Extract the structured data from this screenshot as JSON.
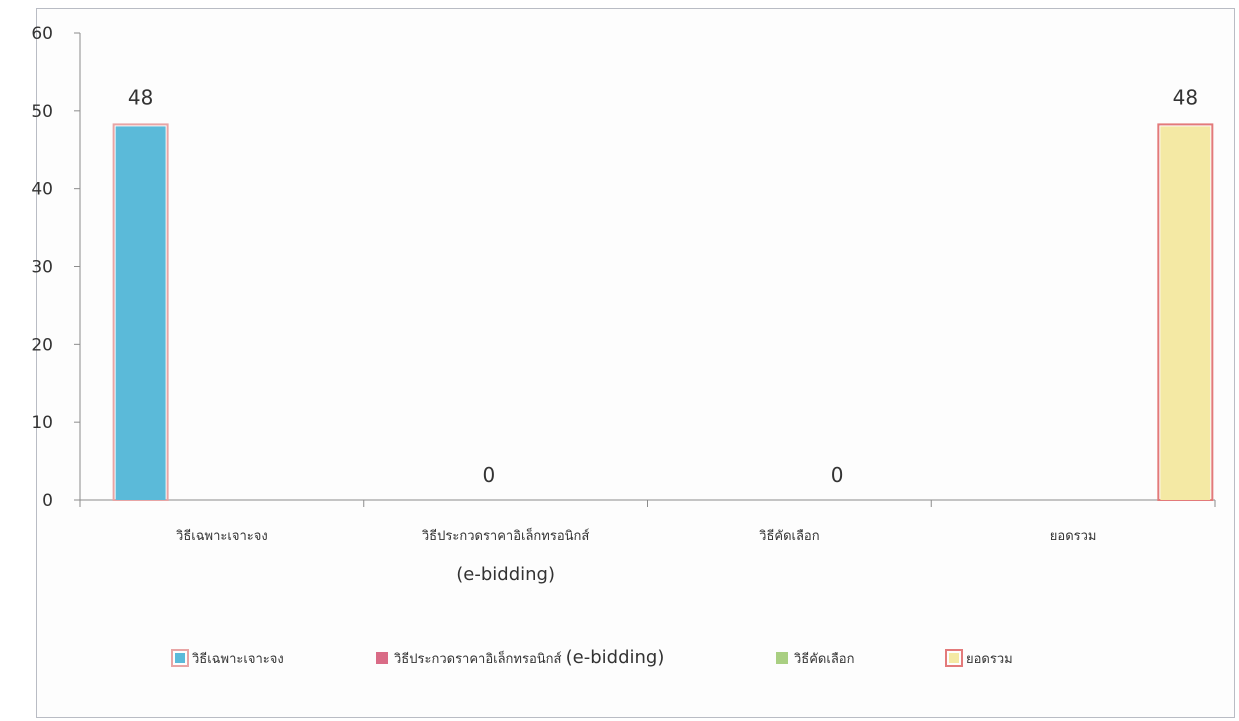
{
  "chart_data": {
    "type": "bar",
    "title": "",
    "xlabel": "",
    "ylabel": "",
    "ylim": [
      0,
      60
    ],
    "yticks": [
      0,
      10,
      20,
      30,
      40,
      50,
      60
    ],
    "grid": false,
    "legend_position": "bottom",
    "categories": [
      {
        "label_lines": [
          "วิธีเฉพาะเจาะจง"
        ]
      },
      {
        "label_lines": [
          "วิธีประกวดราคาอิเล็กทรอนิกส์",
          "(e-bidding)"
        ]
      },
      {
        "label_lines": [
          "วิธีคัดเลือก"
        ]
      },
      {
        "label_lines": [
          "ยอดรวม"
        ]
      }
    ],
    "series": [
      {
        "name": "วิธีเฉพาะเจาะจง",
        "values": [
          48,
          null,
          null,
          null
        ],
        "color": "#5bbad9",
        "border": "#e8a5a5"
      },
      {
        "name": "วิธีประกวดราคาอิเล็กทรอนิกส์ (e-bidding)",
        "values": [
          null,
          0,
          null,
          null
        ],
        "color": "#d96b86",
        "border": "#d96b86"
      },
      {
        "name": "วิธีคัดเลือก",
        "values": [
          null,
          null,
          0,
          null
        ],
        "color": "#a9cf82",
        "border": "#a9cf82"
      },
      {
        "name": "ยอดรวม",
        "values": [
          null,
          null,
          null,
          48
        ],
        "color": "#f4e9a4",
        "border": "#e37a7a"
      }
    ],
    "data_labels": [
      "48",
      "0",
      "0",
      "48"
    ]
  }
}
